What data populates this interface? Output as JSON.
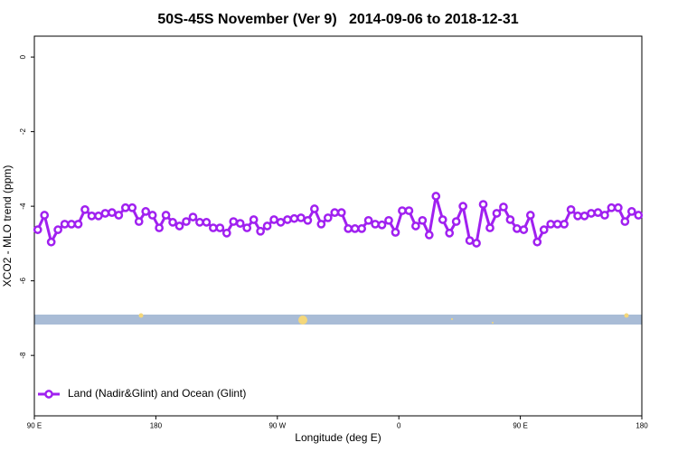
{
  "chart_data": {
    "type": "line",
    "title": "50S-45S November (Ver 9)   2014-09-06 to 2018-12-31",
    "x_label": "Longitude (deg E)",
    "y_label": "XCO2 - MLO trend (ppm)",
    "xlim": [
      90,
      540
    ],
    "ylim": [
      -9.62,
      0.56
    ],
    "xticks": [
      {
        "value": 90,
        "label": "90 E"
      },
      180,
      {
        "value": 270,
        "label": "90 W"
      },
      {
        "value": 360,
        "label": "0"
      },
      {
        "value": 450,
        "label": "90 E"
      },
      {
        "value": 540,
        "label": "180"
      }
    ],
    "yticks": [
      0,
      -2,
      -4,
      -6,
      -8
    ],
    "legend": "bottom-left",
    "x": [
      92.5,
      97.5,
      102.5,
      107.5,
      112.5,
      117.5,
      122.5,
      127.5,
      132.5,
      137.5,
      142.5,
      147.5,
      152.5,
      157.5,
      162.5,
      167.5,
      172.5,
      177.5,
      182.5,
      187.5,
      192.5,
      197.5,
      202.5,
      207.5,
      212.5,
      217.5,
      222.5,
      227.5,
      232.5,
      237.5,
      242.5,
      247.5,
      252.5,
      257.5,
      262.5,
      267.5,
      272.5,
      277.5,
      282.5,
      287.5,
      292.5,
      297.5,
      302.5,
      307.5,
      312.5,
      317.5,
      322.5,
      327.5,
      332.5,
      337.5,
      342.5,
      347.5,
      352.5,
      357.5,
      362.5,
      367.5,
      372.5,
      377.5,
      382.5,
      387.5,
      392.5,
      397.5,
      402.5,
      407.5,
      412.5,
      417.5,
      422.5,
      427.5,
      432.5,
      437.5,
      442.5,
      447.5,
      452.5,
      457.5,
      462.5,
      467.5,
      472.5,
      477.5,
      482.5,
      487.5,
      492.5,
      497.5,
      502.5,
      507.5,
      512.5,
      517.5,
      522.5,
      527.5,
      532.5,
      537.5
    ],
    "series": [
      {
        "name": "Land (Nadir&Glint) and Ocean (Glint)",
        "color": "#a020f0",
        "values": [
          -4.63,
          -4.24,
          -4.96,
          -4.63,
          -4.48,
          -4.48,
          -4.48,
          -4.09,
          -4.26,
          -4.26,
          -4.19,
          -4.17,
          -4.24,
          -4.04,
          -4.04,
          -4.41,
          -4.14,
          -4.24,
          -4.58,
          -4.24,
          -4.43,
          -4.53,
          -4.41,
          -4.29,
          -4.43,
          -4.43,
          -4.58,
          -4.58,
          -4.72,
          -4.41,
          -4.46,
          -4.58,
          -4.36,
          -4.67,
          -4.53,
          -4.36,
          -4.43,
          -4.36,
          -4.33,
          -4.31,
          -4.38,
          -4.07,
          -4.48,
          -4.31,
          -4.17,
          -4.17,
          -4.6,
          -4.6,
          -4.6,
          -4.38,
          -4.48,
          -4.5,
          -4.38,
          -4.7,
          -4.12,
          -4.12,
          -4.53,
          -4.38,
          -4.77,
          -3.73,
          -4.36,
          -4.72,
          -4.41,
          -4.0,
          -4.92,
          -4.99,
          -3.95,
          -4.58,
          -4.19,
          -4.02,
          -4.36,
          -4.6,
          -4.63,
          -4.24,
          -4.96,
          -4.63,
          -4.48,
          -4.48,
          -4.48,
          -4.09,
          -4.26,
          -4.26,
          -4.19,
          -4.17,
          -4.24,
          -4.04,
          -4.04,
          -4.41,
          -4.14,
          -4.24
        ]
      }
    ]
  }
}
